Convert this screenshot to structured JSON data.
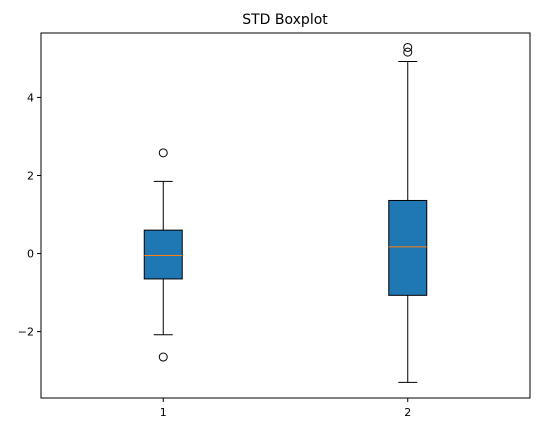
{
  "chart_data": {
    "type": "boxplot",
    "title": "STD Boxplot",
    "xlabel": "",
    "ylabel": "",
    "categories": [
      "1",
      "2"
    ],
    "ylim": [
      -3.7,
      5.65
    ],
    "yticks": [
      -2,
      0,
      2,
      4
    ],
    "ytick_labels": [
      "−2",
      "0",
      "2",
      "4"
    ],
    "grid": false,
    "box_color": "#1f77b4",
    "median_color": "#ff7f0e",
    "boxes": [
      {
        "category": "1",
        "whisker_low": -2.08,
        "q1": -0.65,
        "median": -0.05,
        "q3": 0.6,
        "whisker_high": 1.85,
        "outliers": [
          2.58,
          -2.65
        ]
      },
      {
        "category": "2",
        "whisker_low": -3.3,
        "q1": -1.07,
        "median": 0.17,
        "q3": 1.36,
        "whisker_high": 4.92,
        "outliers": [
          5.16,
          5.28
        ]
      }
    ]
  }
}
